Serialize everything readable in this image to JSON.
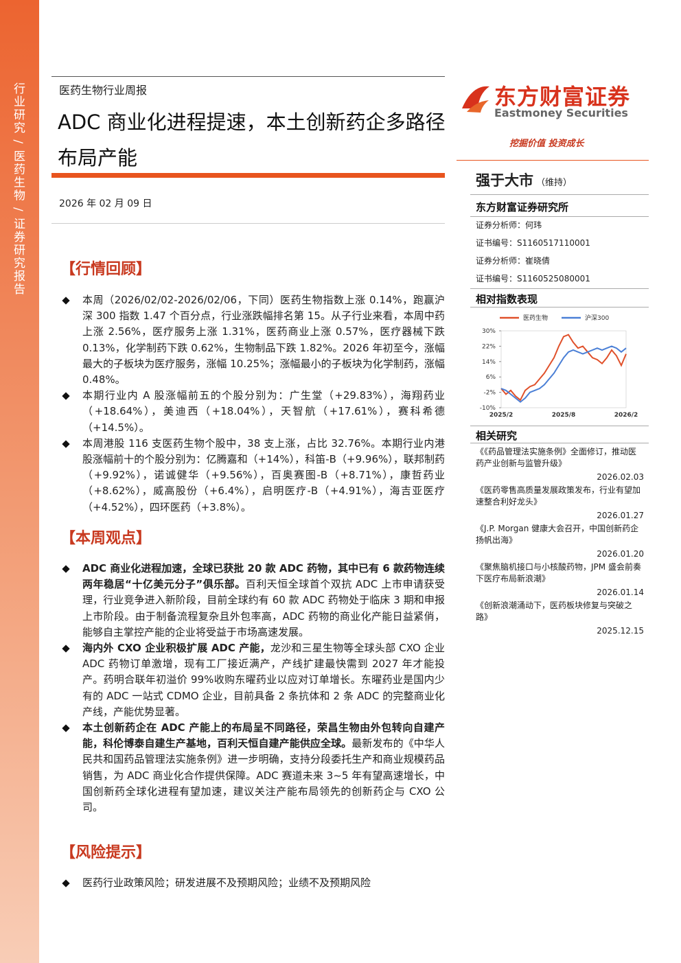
{
  "sidebar": "行业研究 / 医药生物 / 证券研究报告",
  "header": {
    "category": "医药生物行业周报",
    "title": "ADC 商业化进程提速，本土创新药企多路径布局产能",
    "date": "2026 年 02 月 09 日"
  },
  "review": {
    "heading": "【行情回顾】",
    "bullets": [
      "本周（2026/02/02-2026/02/06，下同）医药生物指数上涨 0.14%，跑赢沪深 300 指数 1.47 个百分点，行业涨跌幅排名第 15。从子行业来看，本周中药上涨 2.56%，医疗服务上涨 1.31%，医药商业上涨 0.57%，医疗器械下跌 0.13%，化学制药下跌 0.62%，生物制品下跌 1.82%。2026 年初至今，涨幅最大的子板块为医疗服务，涨幅 10.25%；涨幅最小的子板块为化学制药，涨幅 0.48%。",
      "本期行业内 A 股涨幅前五的个股分别为：广生堂（+29.83%），海翔药业（+18.64%），美迪西（+18.04%），天智航（+17.61%），赛科希德（+14.5%）。",
      "本周港股 116 支医药生物个股中，38 支上涨，占比 32.76%。本期行业内港股涨幅前十的个股分别为：亿腾嘉和（+14%），科笛-B（+9.96%），联邦制药（+9.92%），诺诚健华（+9.56%），百奥赛图-B（+8.71%），康哲药业（+8.62%），威高股份（+6.4%），启明医疗-B（+4.91%），海吉亚医疗（+4.52%），四环医药（+3.8%）。"
    ]
  },
  "views": {
    "heading": "【本周观点】",
    "bullets": [
      {
        "bold": "ADC 商业化进程加速，全球已获批 20 款 ADC 药物，其中已有 6 款药物连续两年稳居“十亿美元分子”俱乐部。",
        "text": "百利天恒全球首个双抗 ADC 上市申请获受理，行业竞争进入新阶段，目前全球约有 60 款 ADC 药物处于临床 3 期和申报上市阶段。由于制备流程复杂且外包率高，ADC 药物的商业化产能日益紧俏，能够自主掌控产能的企业将受益于市场高速发展。"
      },
      {
        "bold": "海内外 CXO 企业积极扩展 ADC 产能，",
        "text": "龙沙和三星生物等全球头部 CXO 企业 ADC 药物订单激增，现有工厂接近满产，产线扩建最快需到 2027 年才能投产。药明合联年初溢价 99%收购东曜药业以应对订单增长。东曜药业是国内少有的 ADC 一站式 CDMO 企业，目前具备 2 条抗体和 2 条 ADC 的完整商业化产线，产能优势显著。"
      },
      {
        "bold": "本土创新药企在 ADC 产能上的布局呈不同路径，荣昌生物由外包转向自建产能，科伦博泰自建生产基地，百利天恒自建产能供应全球。",
        "text": "最新发布的《中华人民共和国药品管理法实施条例》进一步明确，支持分段委托生产和商业规模药品销售，为 ADC 商业化合作提供保障。ADC 赛道未来 3~5 年有望高速增长，中国创新药全球化进程有望加速，建议关注产能布局领先的创新药企与 CXO 公司。"
      }
    ]
  },
  "risk": {
    "heading": "【风险提示】",
    "bullets": [
      "医药行业政策风险；研发进展不及预期风险；业绩不及预期风险"
    ]
  },
  "brand": {
    "name": "东方财富证券",
    "english": "Eastmoney Securities",
    "slogan": "挖掘价值 投资成长"
  },
  "rating": {
    "value": "强于大市",
    "note": "（维持）"
  },
  "institute": "东方财富证券研究所",
  "analysts": [
    "证券分析师：何玮",
    "证书编号：S1160517110001",
    "证券分析师：崔晓倩",
    "证书编号：S1160525080001"
  ],
  "chart_heading": "相对指数表现",
  "chart_data": {
    "type": "line",
    "categories": [
      "2025/2",
      null,
      null,
      null,
      null,
      null,
      null,
      null,
      null,
      null,
      null,
      null,
      null,
      "2025/8",
      null,
      null,
      null,
      null,
      null,
      null,
      null,
      null,
      null,
      null,
      null,
      null,
      "2026/2"
    ],
    "series": [
      {
        "name": "医药生物",
        "color": "#e0502a",
        "values": [
          0,
          -3,
          -1,
          -4,
          -6,
          -1,
          1,
          2,
          5,
          8,
          12,
          16,
          22,
          27,
          28,
          24,
          21,
          22,
          19,
          16,
          15,
          13,
          16,
          20,
          17,
          12,
          18
        ]
      },
      {
        "name": "沪深300",
        "color": "#4a7fd6",
        "values": [
          0,
          -1,
          -3,
          -5,
          -7,
          -5,
          -2,
          -1,
          0,
          2,
          5,
          8,
          12,
          16,
          19,
          20,
          19,
          18,
          19,
          20,
          21,
          20,
          21,
          22,
          21,
          19,
          21
        ]
      }
    ],
    "ylim": [
      -10,
      30
    ],
    "yticks": [
      {
        "value": -10,
        "label": "-10%"
      },
      {
        "value": -2,
        "label": "-2%"
      },
      {
        "value": 6,
        "label": "6%"
      },
      {
        "value": 14,
        "label": "14%"
      },
      {
        "value": 22,
        "label": "22%"
      },
      {
        "value": 30,
        "label": "30%"
      }
    ],
    "legend": "top"
  },
  "related": {
    "heading": "相关研究",
    "items": [
      {
        "title": "《《药品管理法实施条例》全面修订，推动医药产业创新与监管升级》",
        "date": "2026.02.03"
      },
      {
        "title": "《医药零售高质量发展政策发布，行业有望加速整合利好龙头》",
        "date": "2026.01.27"
      },
      {
        "title": "《J.P. Morgan 健康大会召开，中国创新药企扬帆出海》",
        "date": "2026.01.20"
      },
      {
        "title": "《聚焦脑机接口与小核酸药物，JPM 盛会前奏下医疗布局新浪潮》",
        "date": "2026.01.14"
      },
      {
        "title": "《创新浪潮涌动下，医药板块修复与突破之路》",
        "date": "2025.12.15"
      }
    ]
  }
}
